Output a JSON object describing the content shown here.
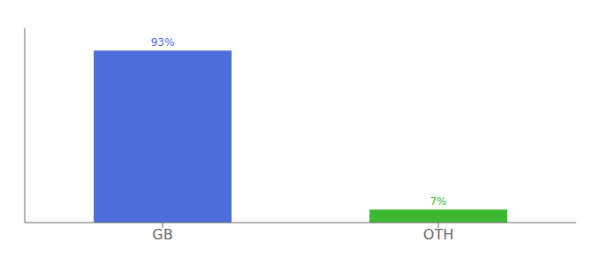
{
  "chart_data": {
    "type": "bar",
    "categories": [
      "GB",
      "OTH"
    ],
    "values": [
      93,
      7
    ],
    "value_labels": [
      "93%",
      "7%"
    ],
    "colors": [
      "#4d6edb",
      "#3cb832"
    ],
    "ylim": [
      0,
      105
    ],
    "data_labels": true,
    "tick_labels": "x",
    "grid": false
  }
}
